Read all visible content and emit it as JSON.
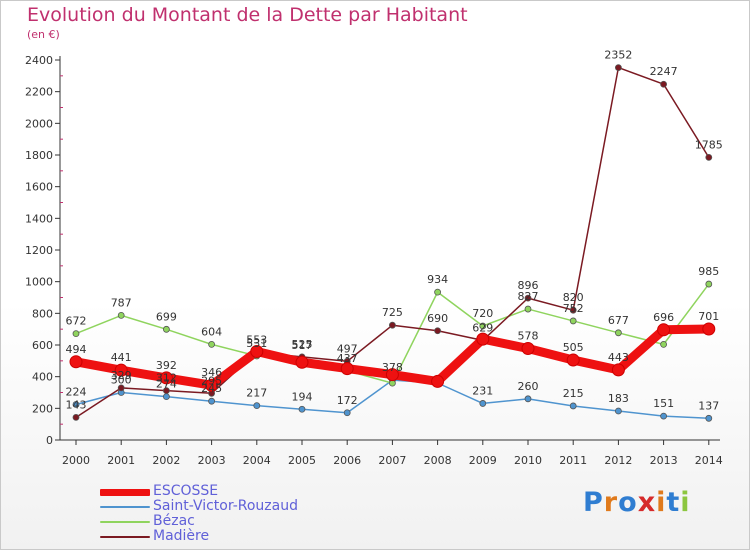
{
  "title": "Evolution du Montant de la Dette par Habitant",
  "unit": "(en €)",
  "brand": {
    "letters": [
      "P",
      "r",
      "o",
      "x",
      "i",
      "t",
      "i"
    ],
    "colors": [
      "#2f7dd1",
      "#e07a1c",
      "#2f7dd1",
      "#d62a2a",
      "#e07a1c",
      "#2f7dd1",
      "#8cc63f"
    ]
  },
  "chart_data": {
    "type": "line",
    "title": "Evolution du Montant de la Dette par Habitant",
    "ylabel": "(en €)",
    "xlabel": "",
    "x": [
      "2000",
      "2001",
      "2002",
      "2003",
      "2004",
      "2005",
      "2006",
      "2007",
      "2008",
      "2009",
      "2010",
      "2011",
      "2012",
      "2013",
      "2014"
    ],
    "ylim": [
      0,
      2400
    ],
    "yticks": [
      0,
      200,
      400,
      600,
      800,
      1000,
      1200,
      1400,
      1600,
      1800,
      2000,
      2200,
      2400
    ],
    "grid": false,
    "legend_position": "bottom-left",
    "series": [
      {
        "name": "ESCOSSE",
        "color": "#ee1111",
        "values": [
          494,
          441,
          392,
          346,
          559,
          491,
          451,
          413,
          370,
          637,
          578,
          505,
          443,
          696,
          701
        ],
        "labels": [
          "494",
          "441",
          "392",
          "346",
          "",
          "",
          "",
          "",
          "",
          "",
          "578",
          "505",
          "443",
          "696",
          "701"
        ]
      },
      {
        "name": "Saint-Victor-Rouzaud",
        "color": "#4f94cf",
        "values": [
          224,
          300,
          274,
          245,
          217,
          194,
          172,
          378,
          360,
          231,
          260,
          215,
          183,
          151,
          137
        ],
        "labels": [
          "224",
          "300",
          "274",
          "245",
          "217",
          "194",
          "172",
          "378",
          "",
          "231",
          "260",
          "215",
          "183",
          "151",
          "137"
        ]
      },
      {
        "name": "Bézac",
        "color": "#8fd45e",
        "values": [
          672,
          787,
          699,
          604,
          531,
          517,
          437,
          359,
          934,
          720,
          827,
          752,
          677,
          604,
          985
        ],
        "labels": [
          "672",
          "787",
          "699",
          "604",
          "531",
          "517",
          "437",
          "",
          "934",
          "720",
          "827",
          "752",
          "677",
          "",
          "985"
        ]
      },
      {
        "name": "Madière",
        "color": "#7b1a22",
        "values": [
          143,
          329,
          312,
          295,
          553,
          525,
          497,
          725,
          690,
          629,
          896,
          820,
          2352,
          2247,
          1785
        ],
        "labels": [
          "143",
          "329",
          "312",
          "295",
          "553",
          "525",
          "497",
          "725",
          "690",
          "629",
          "896",
          "820",
          "2352",
          "2247",
          "1785"
        ]
      }
    ]
  }
}
